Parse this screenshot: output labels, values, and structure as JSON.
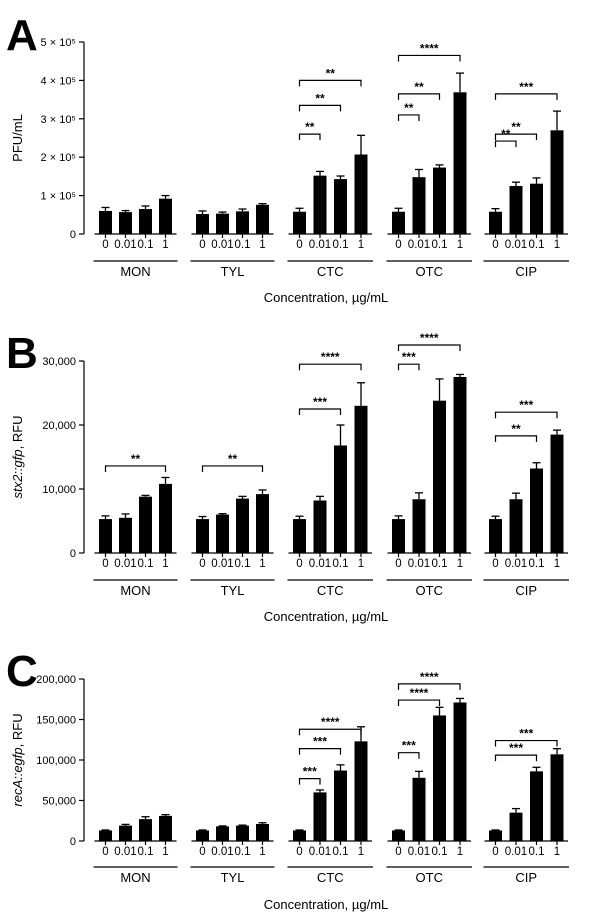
{
  "chart_data": [
    {
      "panel_label": "A",
      "type": "bar",
      "ylabel": "PFU/mL",
      "xlabel": "Concentration, µg/mL",
      "ylim": [
        0,
        500000
      ],
      "yticks": [
        {
          "value": 0,
          "label": "0"
        },
        {
          "value": 100000,
          "label": "1 × 10⁵"
        },
        {
          "value": 200000,
          "label": "2 × 10⁵"
        },
        {
          "value": 300000,
          "label": "3 × 10⁵"
        },
        {
          "value": 400000,
          "label": "4 × 10⁵"
        },
        {
          "value": 500000,
          "label": "5 × 10⁵"
        }
      ],
      "groups": [
        {
          "name": "MON",
          "concentrations": [
            "0",
            "0.01",
            "0.1",
            "1"
          ],
          "values": [
            60000,
            57000,
            65000,
            92000
          ],
          "errors": [
            9000,
            4000,
            8000,
            8000
          ]
        },
        {
          "name": "TYL",
          "concentrations": [
            "0",
            "0.01",
            "0.1",
            "1"
          ],
          "values": [
            52000,
            53000,
            59000,
            76000
          ],
          "errors": [
            8000,
            4000,
            6000,
            3000
          ]
        },
        {
          "name": "CTC",
          "concentrations": [
            "0",
            "0.01",
            "0.1",
            "1"
          ],
          "values": [
            58000,
            152000,
            143000,
            207000
          ],
          "errors": [
            9000,
            11000,
            8000,
            50000
          ]
        },
        {
          "name": "OTC",
          "concentrations": [
            "0",
            "0.01",
            "0.1",
            "1"
          ],
          "values": [
            58000,
            148000,
            173000,
            369000
          ],
          "errors": [
            9000,
            20000,
            7000,
            50000
          ]
        },
        {
          "name": "CIP",
          "concentrations": [
            "0",
            "0.01",
            "0.1",
            "1"
          ],
          "values": [
            58000,
            125000,
            131000,
            270000
          ],
          "errors": [
            8000,
            10000,
            15000,
            50000
          ]
        }
      ],
      "significance": [
        {
          "group": 2,
          "to": 1,
          "stars": "**",
          "at": 260000
        },
        {
          "group": 2,
          "to": 2,
          "stars": "**",
          "at": 335000
        },
        {
          "group": 2,
          "to": 3,
          "stars": "**",
          "at": 400000
        },
        {
          "group": 3,
          "to": 1,
          "stars": "**",
          "at": 310000
        },
        {
          "group": 3,
          "to": 2,
          "stars": "**",
          "at": 365000
        },
        {
          "group": 3,
          "to": 3,
          "stars": "****",
          "at": 465000
        },
        {
          "group": 4,
          "to": 1,
          "stars": "**",
          "at": 242000
        },
        {
          "group": 4,
          "to": 2,
          "stars": "**",
          "at": 260000
        },
        {
          "group": 4,
          "to": 3,
          "stars": "***",
          "at": 365000
        }
      ]
    },
    {
      "panel_label": "B",
      "type": "bar",
      "ylabel_italic": "stx2::gfp",
      "ylabel_rest": ", RFU",
      "xlabel": "Concentration, µg/mL",
      "ylim": [
        0,
        30000
      ],
      "yticks": [
        {
          "value": 0,
          "label": "0"
        },
        {
          "value": 10000,
          "label": "10,000"
        },
        {
          "value": 20000,
          "label": "20,000"
        },
        {
          "value": 30000,
          "label": "30,000"
        }
      ],
      "groups": [
        {
          "name": "MON",
          "concentrations": [
            "0",
            "0.01",
            "0.1",
            "1"
          ],
          "values": [
            5300,
            5500,
            8800,
            10800
          ],
          "errors": [
            500,
            600,
            200,
            1000
          ]
        },
        {
          "name": "TYL",
          "concentrations": [
            "0",
            "0.01",
            "0.1",
            "1"
          ],
          "values": [
            5300,
            6000,
            8500,
            9200
          ],
          "errors": [
            400,
            150,
            350,
            650
          ]
        },
        {
          "name": "CTC",
          "concentrations": [
            "0",
            "0.01",
            "0.1",
            "1"
          ],
          "values": [
            5300,
            8200,
            16800,
            23000
          ],
          "errors": [
            450,
            650,
            3200,
            3600
          ]
        },
        {
          "name": "OTC",
          "concentrations": [
            "0",
            "0.01",
            "0.1",
            "1"
          ],
          "values": [
            5300,
            8400,
            23800,
            27500
          ],
          "errors": [
            500,
            1000,
            3400,
            400
          ]
        },
        {
          "name": "CIP",
          "concentrations": [
            "0",
            "0.01",
            "0.1",
            "1"
          ],
          "values": [
            5300,
            8400,
            13200,
            18500
          ],
          "errors": [
            450,
            950,
            900,
            700
          ]
        }
      ],
      "significance": [
        {
          "group": 0,
          "to": 3,
          "stars": "**",
          "at": 13600
        },
        {
          "group": 1,
          "to": 3,
          "stars": "**",
          "at": 13600
        },
        {
          "group": 2,
          "to": 2,
          "stars": "***",
          "at": 22500
        },
        {
          "group": 2,
          "to": 3,
          "stars": "****",
          "at": 29500
        },
        {
          "group": 3,
          "to": 1,
          "stars": "***",
          "at": 29500
        },
        {
          "group": 3,
          "to": 3,
          "stars": "****",
          "at": 32500
        },
        {
          "group": 4,
          "to": 2,
          "stars": "**",
          "at": 18300
        },
        {
          "group": 4,
          "to": 3,
          "stars": "***",
          "at": 22000
        }
      ]
    },
    {
      "panel_label": "C",
      "type": "bar",
      "ylabel_italic": "recA::egfp",
      "ylabel_rest": ", RFU",
      "xlabel": "Concentration, µg/mL",
      "ylim": [
        0,
        200000
      ],
      "yticks": [
        {
          "value": 0,
          "label": "0"
        },
        {
          "value": 50000,
          "label": "50,000"
        },
        {
          "value": 100000,
          "label": "100,000"
        },
        {
          "value": 150000,
          "label": "150,000"
        },
        {
          "value": 200000,
          "label": "200,000"
        }
      ],
      "groups": [
        {
          "name": "MON",
          "concentrations": [
            "0",
            "0.01",
            "0.1",
            "1"
          ],
          "values": [
            13000,
            19000,
            27000,
            31000
          ],
          "errors": [
            600,
            1500,
            3000,
            1500
          ]
        },
        {
          "name": "TYL",
          "concentrations": [
            "0",
            "0.01",
            "0.1",
            "1"
          ],
          "values": [
            13000,
            18000,
            19000,
            21000
          ],
          "errors": [
            600,
            600,
            600,
            1500
          ]
        },
        {
          "name": "CTC",
          "concentrations": [
            "0",
            "0.01",
            "0.1",
            "1"
          ],
          "values": [
            13000,
            60000,
            87000,
            123000
          ],
          "errors": [
            600,
            3000,
            7000,
            18000
          ]
        },
        {
          "name": "OTC",
          "concentrations": [
            "0",
            "0.01",
            "0.1",
            "1"
          ],
          "values": [
            13000,
            78000,
            155000,
            171000
          ],
          "errors": [
            600,
            8000,
            10000,
            5000
          ]
        },
        {
          "name": "CIP",
          "concentrations": [
            "0",
            "0.01",
            "0.1",
            "1"
          ],
          "values": [
            13000,
            35000,
            86000,
            107000
          ],
          "errors": [
            600,
            5000,
            5000,
            7000
          ]
        }
      ],
      "significance": [
        {
          "group": 2,
          "to": 1,
          "stars": "***",
          "at": 77000
        },
        {
          "group": 2,
          "to": 2,
          "stars": "***",
          "at": 114000
        },
        {
          "group": 2,
          "to": 3,
          "stars": "****",
          "at": 138000
        },
        {
          "group": 3,
          "to": 1,
          "stars": "***",
          "at": 109000
        },
        {
          "group": 3,
          "to": 2,
          "stars": "****",
          "at": 174000
        },
        {
          "group": 3,
          "to": 3,
          "stars": "****",
          "at": 194000
        },
        {
          "group": 4,
          "to": 2,
          "stars": "***",
          "at": 106000
        },
        {
          "group": 4,
          "to": 3,
          "stars": "***",
          "at": 124000
        }
      ]
    }
  ]
}
